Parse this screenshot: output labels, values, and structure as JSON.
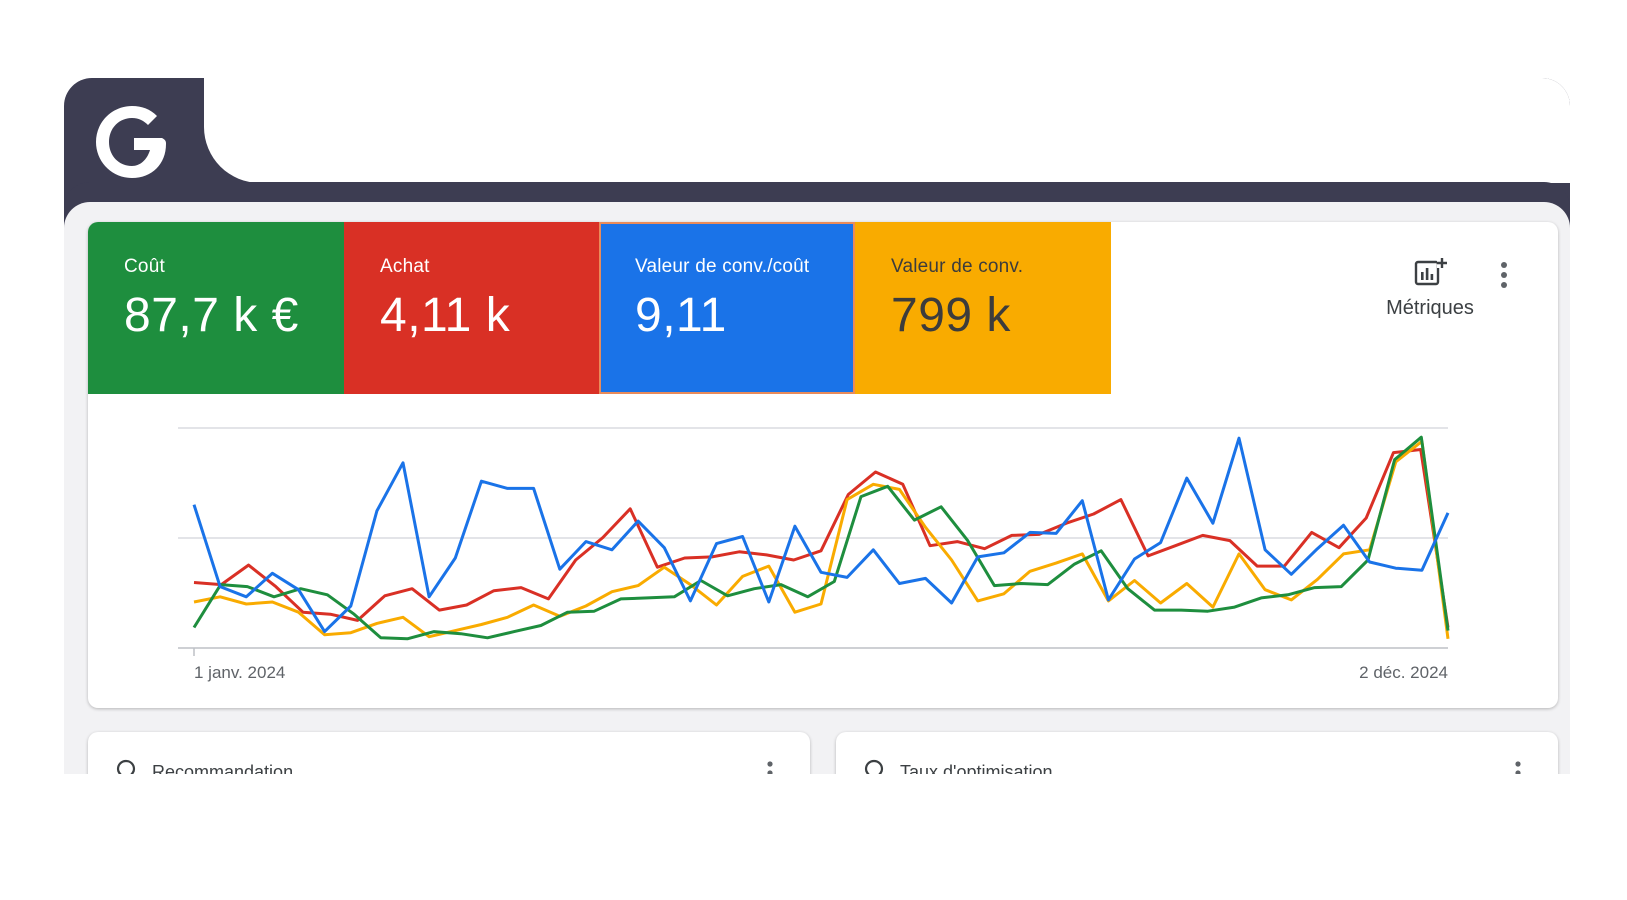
{
  "tiles": [
    {
      "label": "Coût",
      "value": "87,7 k €",
      "color": "#1e8e3e"
    },
    {
      "label": "Achat",
      "value": "4,11 k",
      "color": "#d93025"
    },
    {
      "label": "Valeur de conv./coût",
      "value": "9,11",
      "color": "#1a73e8"
    },
    {
      "label": "Valeur de conv.",
      "value": "799 k",
      "color": "#f9ab00"
    }
  ],
  "toolbar": {
    "metrics_label": "Métriques",
    "metrics_icon": "add-chart-icon",
    "more_icon": "more-vert-icon"
  },
  "chart_data": {
    "type": "line",
    "x_start_label": "1 janv. 2024",
    "x_end_label": "2 déc. 2024",
    "grid": true,
    "series": [
      {
        "color": "#1e8e3e",
        "values": [
          20,
          62,
          60,
          50,
          58,
          52,
          33,
          10,
          9,
          16,
          14,
          10,
          16,
          22,
          35,
          36,
          48,
          49,
          50,
          66,
          51,
          58,
          62,
          50,
          65,
          148,
          158,
          125,
          138,
          105,
          61,
          63,
          62,
          82,
          95,
          58,
          37,
          37,
          36,
          40,
          49,
          52,
          59,
          60,
          86,
          184,
          206,
          17
        ]
      },
      {
        "color": "#d93025",
        "values": [
          64,
          62,
          81,
          60,
          35,
          33,
          27,
          51,
          58,
          37,
          42,
          56,
          59,
          48,
          86,
          108,
          136,
          79,
          88,
          89,
          94,
          91,
          86,
          95,
          150,
          172,
          160,
          100,
          104,
          97,
          110,
          111,
          122,
          131,
          145,
          90,
          100,
          110,
          105,
          80,
          80,
          113,
          98,
          127,
          191,
          194,
          20
        ]
      },
      {
        "color": "#1a73e8",
        "values": [
          140,
          60,
          50,
          73,
          57,
          16,
          41,
          134,
          181,
          50,
          88,
          163,
          156,
          156,
          77,
          104,
          96,
          124,
          98,
          46,
          102,
          109,
          45,
          119,
          74,
          69,
          96,
          63,
          68,
          44,
          89,
          93,
          113,
          112,
          144,
          47,
          87,
          103,
          166,
          122,
          205,
          96,
          72,
          97,
          120,
          84,
          78,
          76,
          132
        ]
      },
      {
        "color": "#f9ab00",
        "values": [
          45,
          50,
          43,
          45,
          35,
          13,
          15,
          24,
          30,
          11,
          17,
          23,
          30,
          42,
          31,
          41,
          55,
          61,
          79,
          62,
          42,
          70,
          80,
          35,
          43,
          145,
          160,
          155,
          118,
          86,
          46,
          53,
          75,
          83,
          92,
          46,
          66,
          44,
          63,
          40,
          92,
          57,
          47,
          67,
          92,
          96,
          182,
          202,
          9
        ]
      }
    ]
  },
  "cards": [
    {
      "label": "Recommandation",
      "icon": "lightbulb-icon"
    },
    {
      "label": "Taux d'optimisation",
      "icon": "lightbulb-icon"
    }
  ]
}
